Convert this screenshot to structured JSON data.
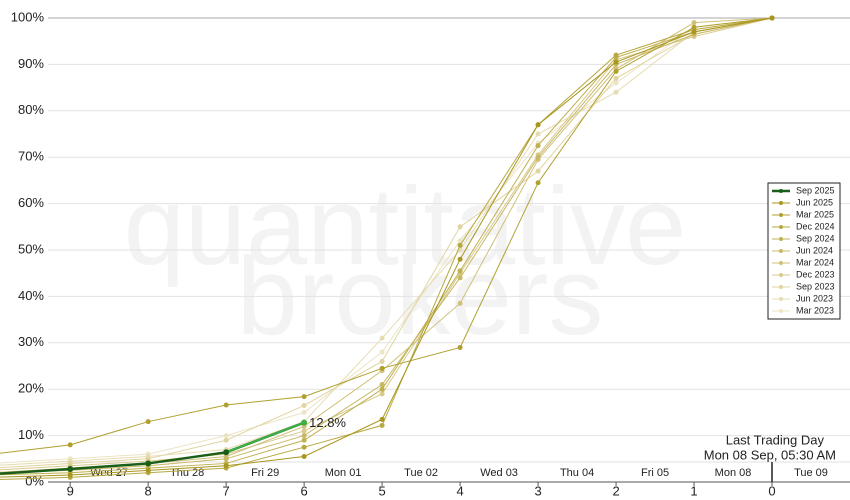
{
  "chart_data": {
    "type": "line",
    "watermark": [
      "quantitative",
      "brokers"
    ],
    "annotation": [
      "Last Trading Day",
      "Mon 08 Sep, 05:30 AM"
    ],
    "date_labels": [
      "Wed 27",
      "Thu 28",
      "Fri 29",
      "Mon 01",
      "Tue 02",
      "Wed 03",
      "Thu 04",
      "Fri 05",
      "Mon 08",
      "Tue 09"
    ],
    "x": [
      10,
      9,
      8,
      7,
      6,
      5,
      4,
      3,
      2,
      1,
      0
    ],
    "xlim": [
      9.9,
      -1.0
    ],
    "xticks": [
      9,
      8,
      7,
      6,
      5,
      4,
      3,
      2,
      1,
      0
    ],
    "ylim": [
      0,
      100
    ],
    "yticks": [
      {
        "value": 0,
        "label": "0%"
      },
      {
        "value": 10,
        "label": "10%"
      },
      {
        "value": 20,
        "label": "20%"
      },
      {
        "value": 30,
        "label": "30%"
      },
      {
        "value": 40,
        "label": "40%"
      },
      {
        "value": 50,
        "label": "50%"
      },
      {
        "value": 60,
        "label": "60%"
      },
      {
        "value": 70,
        "label": "70%"
      },
      {
        "value": 80,
        "label": "80%"
      },
      {
        "value": 90,
        "label": "90%"
      },
      {
        "value": 100,
        "label": "100%"
      }
    ],
    "grid": true,
    "legend": "right",
    "last_segment_color": "#3cb043",
    "series": [
      {
        "name": "Sep 2025",
        "color": "#1a5e1a",
        "values": [
          1.7,
          2.8,
          4.0,
          6.4,
          12.8,
          null,
          null,
          null,
          null,
          null,
          null
        ],
        "value_labels": [
          null,
          null,
          null,
          null,
          "12.8%",
          null,
          null,
          null,
          null,
          null,
          null
        ]
      },
      {
        "name": "Jun 2025",
        "color": "#a8961e",
        "values": [
          1,
          1.5,
          2.5,
          3.5,
          5.5,
          13.5,
          48,
          77,
          90.5,
          97,
          100
        ]
      },
      {
        "name": "Mar 2025",
        "color": "#b0a030",
        "values": [
          6,
          8,
          13,
          16.6,
          18.4,
          24.5,
          29,
          64.5,
          88.5,
          98,
          100
        ]
      },
      {
        "name": "Dec 2024",
        "color": "#b8a840",
        "values": [
          0.5,
          1,
          2,
          3,
          7.5,
          12.2,
          51,
          77,
          92,
          97.5,
          100
        ]
      },
      {
        "name": "Sep 2024",
        "color": "#c0b050",
        "values": [
          1.5,
          2,
          3,
          4,
          9,
          20,
          45.5,
          72.5,
          91.5,
          97,
          100
        ]
      },
      {
        "name": "Jun 2024",
        "color": "#c8b865",
        "values": [
          2,
          2.5,
          3.5,
          5,
          10,
          21,
          44,
          70,
          90,
          96.5,
          100
        ]
      },
      {
        "name": "Mar 2024",
        "color": "#d0c078",
        "values": [
          2,
          3,
          4,
          5.5,
          12,
          24,
          38.5,
          69.5,
          89,
          99,
          100
        ]
      },
      {
        "name": "Dec 2023",
        "color": "#d8ca8c",
        "values": [
          2.5,
          3.5,
          4.5,
          6,
          11,
          19,
          45,
          70.5,
          91,
          96,
          100
        ]
      },
      {
        "name": "Sep 2023",
        "color": "#e0d4a0",
        "values": [
          3,
          4,
          5,
          9,
          16.5,
          26,
          55,
          67,
          87,
          96.5,
          100
        ]
      },
      {
        "name": "Jun 2023",
        "color": "#e6dcb2",
        "values": [
          3.5,
          4.5,
          5.5,
          7,
          13,
          31,
          50,
          75,
          84,
          97,
          100
        ]
      },
      {
        "name": "Mar 2023",
        "color": "#ece4c4",
        "values": [
          4,
          5,
          6,
          10,
          15,
          28,
          52,
          73,
          86,
          98,
          100
        ]
      }
    ]
  }
}
